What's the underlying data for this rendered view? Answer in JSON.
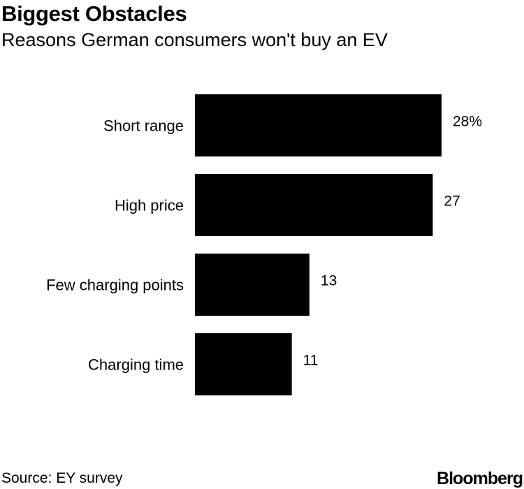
{
  "header": {
    "title": "Biggest Obstacles",
    "subtitle": "Reasons German consumers won't buy an EV"
  },
  "footer": {
    "source": "Source: EY survey",
    "brand": "Bloomberg"
  },
  "colors": {
    "bar": "#000000",
    "background": "#ffffff"
  },
  "chart_data": {
    "type": "bar",
    "orientation": "horizontal",
    "title": "Biggest Obstacles",
    "subtitle": "Reasons German consumers won't buy an EV",
    "categories": [
      "Short range",
      "High price",
      "Few charging points",
      "Charging time"
    ],
    "values": [
      28,
      27,
      13,
      11
    ],
    "data_labels": [
      "28%",
      "27",
      "13",
      "11"
    ],
    "unit": "%",
    "xlim": [
      0,
      28
    ],
    "grid": false,
    "legend": "none"
  }
}
